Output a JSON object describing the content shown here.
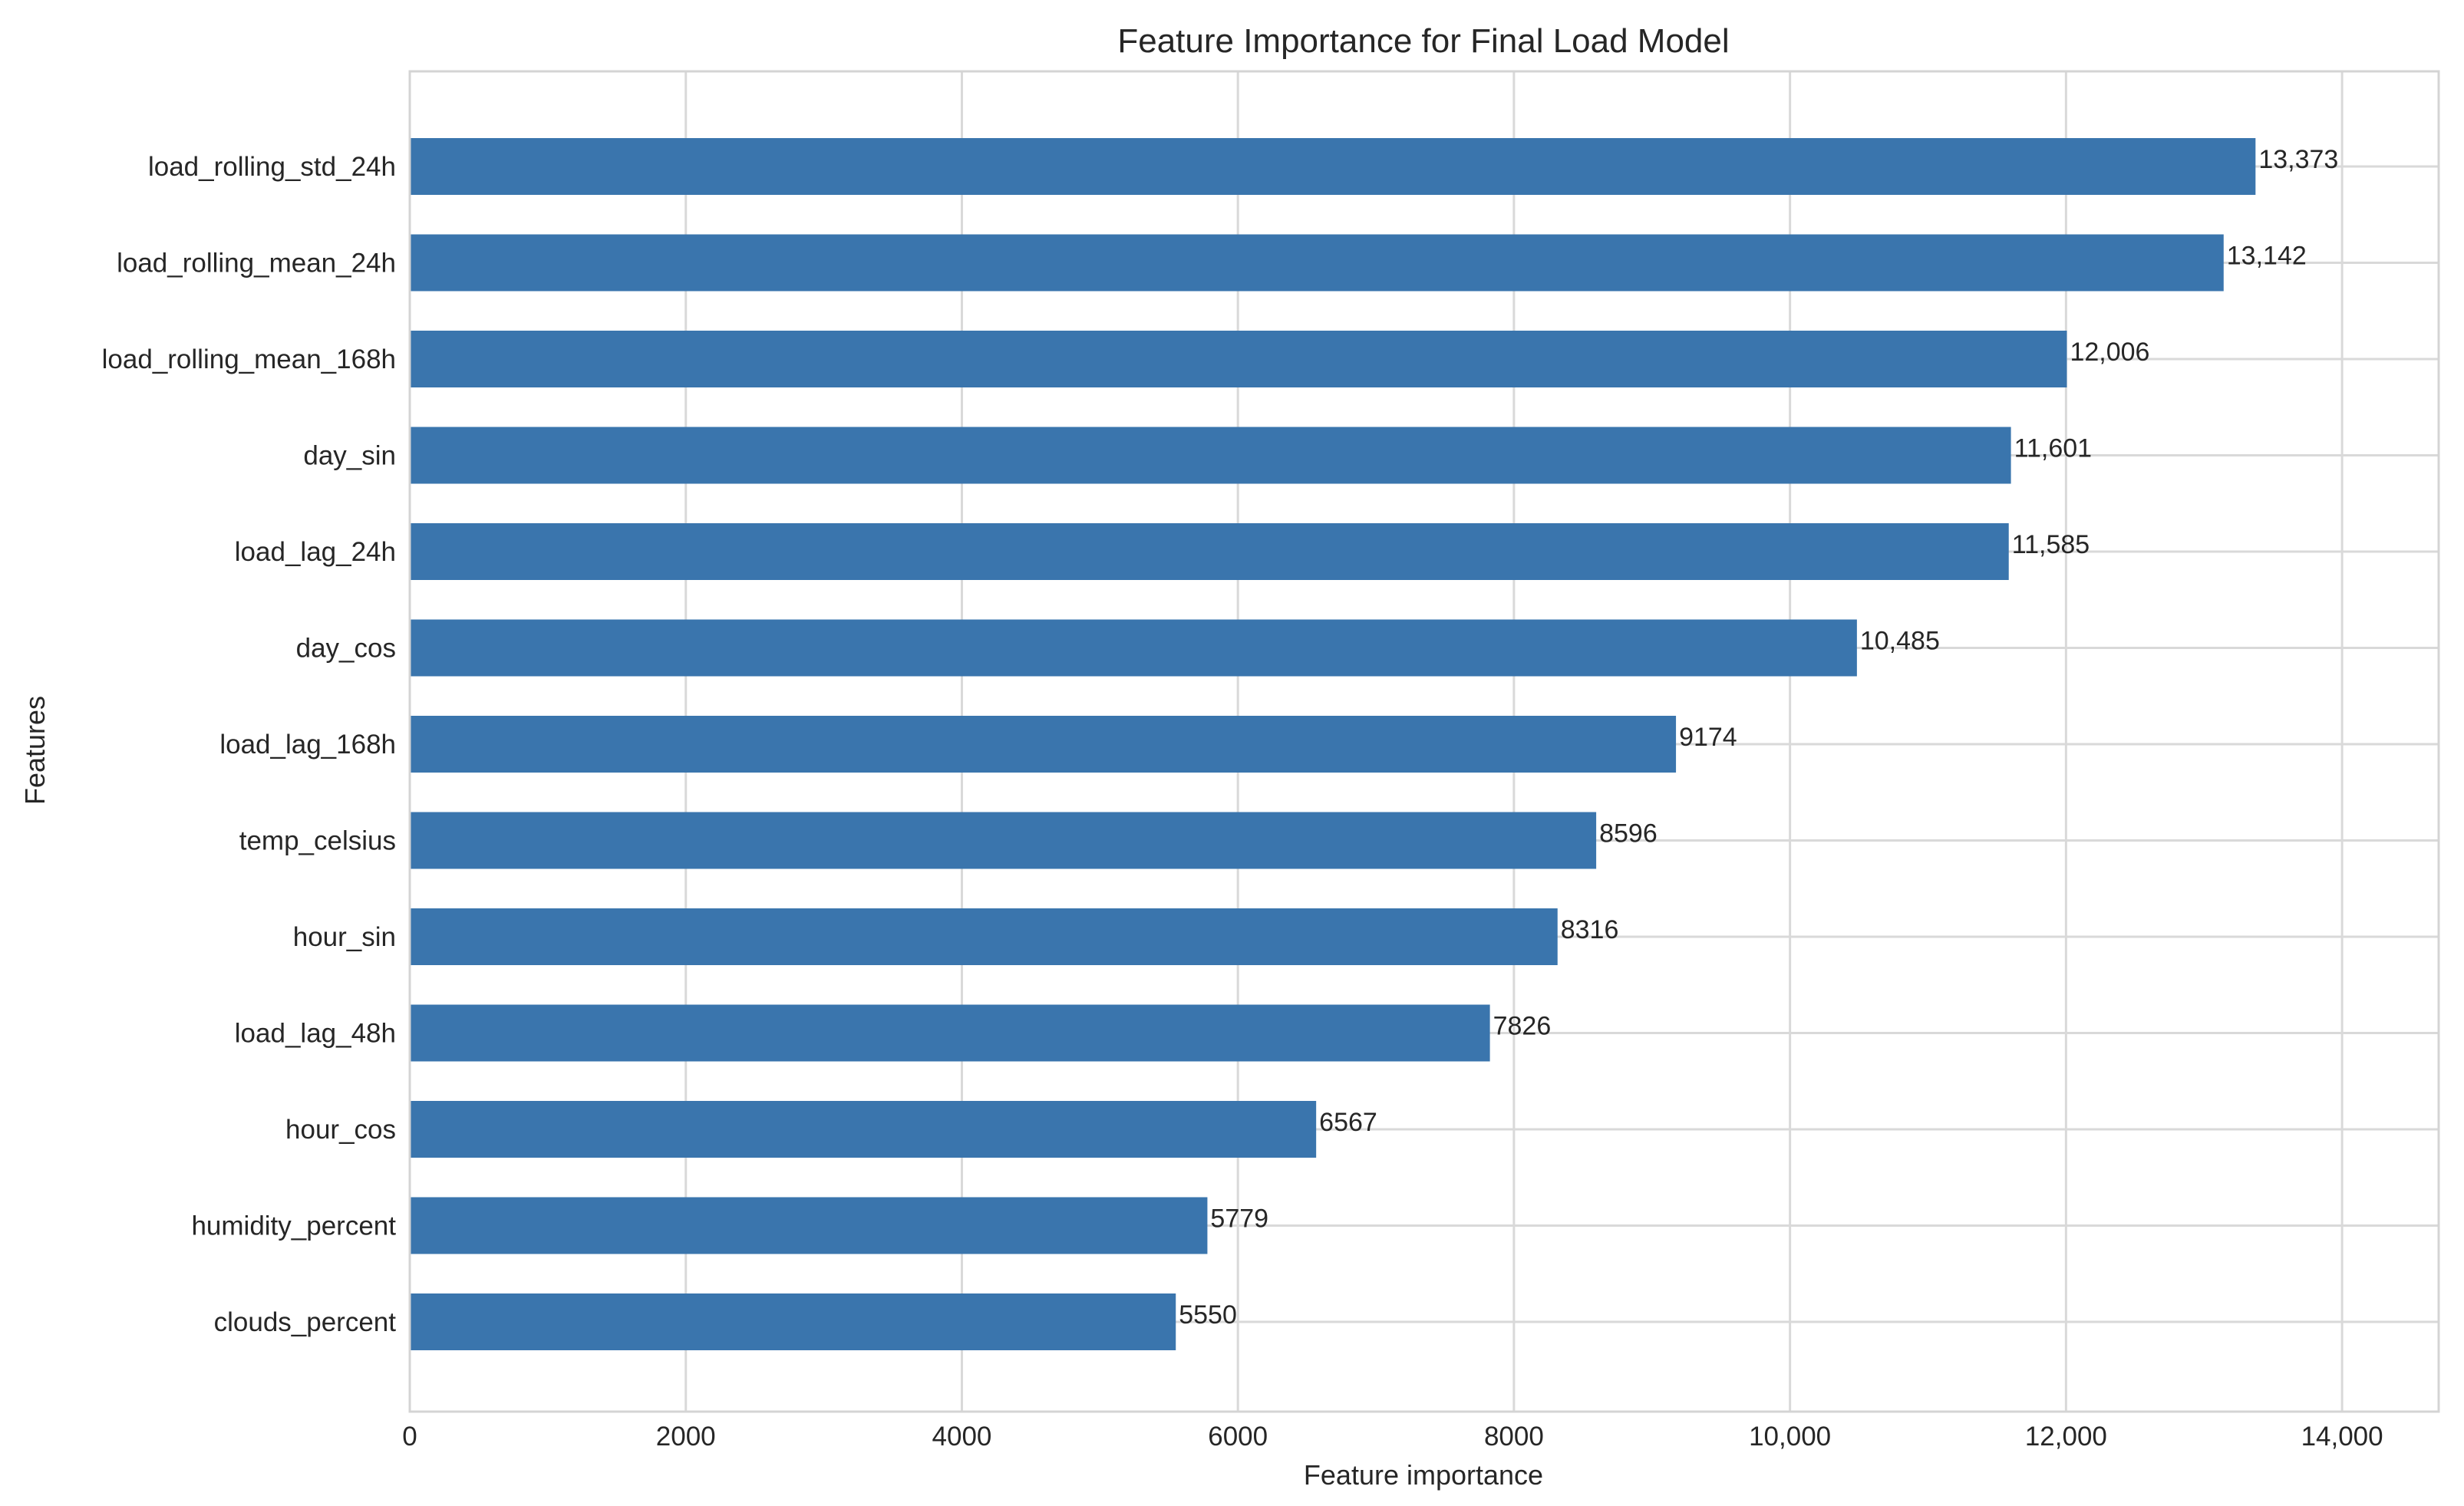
{
  "chart_data": {
    "type": "bar",
    "orientation": "horizontal",
    "title": "Feature Importance for Final Load Model",
    "xlabel": "Feature importance",
    "ylabel": "Features",
    "categories": [
      "load_rolling_std_24h",
      "load_rolling_mean_24h",
      "load_rolling_mean_168h",
      "day_sin",
      "load_lag_24h",
      "day_cos",
      "load_lag_168h",
      "temp_celsius",
      "hour_sin",
      "load_lag_48h",
      "hour_cos",
      "humidity_percent",
      "clouds_percent"
    ],
    "values": [
      13373,
      13142,
      12006,
      11601,
      11585,
      10485,
      9174,
      8596,
      8316,
      7826,
      6567,
      5779,
      5550
    ],
    "value_labels": [
      "13,373",
      "13,142",
      "12,006",
      "11,601",
      "11,585",
      "10,485",
      "9174",
      "8596",
      "8316",
      "7826",
      "6567",
      "5779",
      "5550"
    ],
    "xlim": [
      0,
      14700
    ],
    "xticks": [
      0,
      2000,
      4000,
      6000,
      8000,
      10000,
      12000,
      14000
    ],
    "xtick_labels": [
      "0",
      "2000",
      "4000",
      "6000",
      "8000",
      "10,000",
      "12,000",
      "14,000"
    ],
    "grid": true,
    "bar_color": "#3a75ad"
  }
}
